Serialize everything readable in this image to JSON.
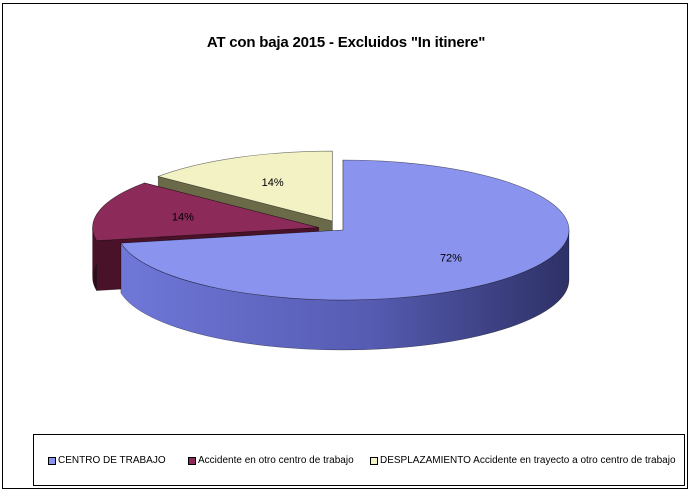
{
  "chart_data": {
    "type": "pie",
    "title": "AT con baja 2015 - Excluidos \"In itinere\"",
    "categories": [
      "CENTRO DE TRABAJO",
      "Accidente en otro centro de trabajo",
      "DESPLAZAMIENTO  Accidente en trayecto a otro centro de trabajo"
    ],
    "values": [
      72,
      14,
      14
    ],
    "labels": [
      "72%",
      "14%",
      "14%"
    ],
    "colors": [
      "#8A93EE",
      "#8C2A5A",
      "#F2F2C4"
    ],
    "side_colors": [
      "#3A3E7A",
      "#4A1229",
      "#6A6A48"
    ],
    "exploded": [
      false,
      true,
      true
    ],
    "legend_position": "bottom",
    "style": "3d"
  }
}
